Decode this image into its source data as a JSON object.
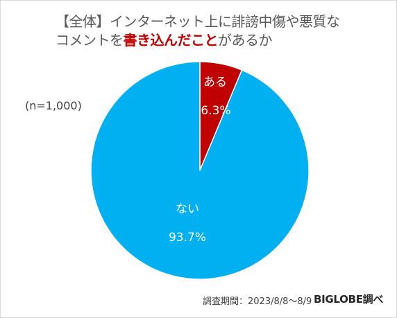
{
  "chart_data": {
    "type": "pie",
    "title_line1": "【全体】インターネット上に誹謗中傷や悪質な",
    "title_line2_prefix": "コメントを",
    "title_line2_emphasis": "書き込んだこと",
    "title_line2_suffix": "があるか",
    "sample_size": "(n=1,000)",
    "slices": [
      {
        "label": "ある",
        "value": 6.3,
        "value_label": "6.3%",
        "color": "#c00000"
      },
      {
        "label": "ない",
        "value": 93.7,
        "value_label": "93.7%",
        "color": "#00b0f0"
      }
    ],
    "start": "12 o'clock, clockwise"
  },
  "footer": {
    "period": "調査期間：2023/8/8～8/9",
    "source": "BIGLOBE調べ"
  }
}
